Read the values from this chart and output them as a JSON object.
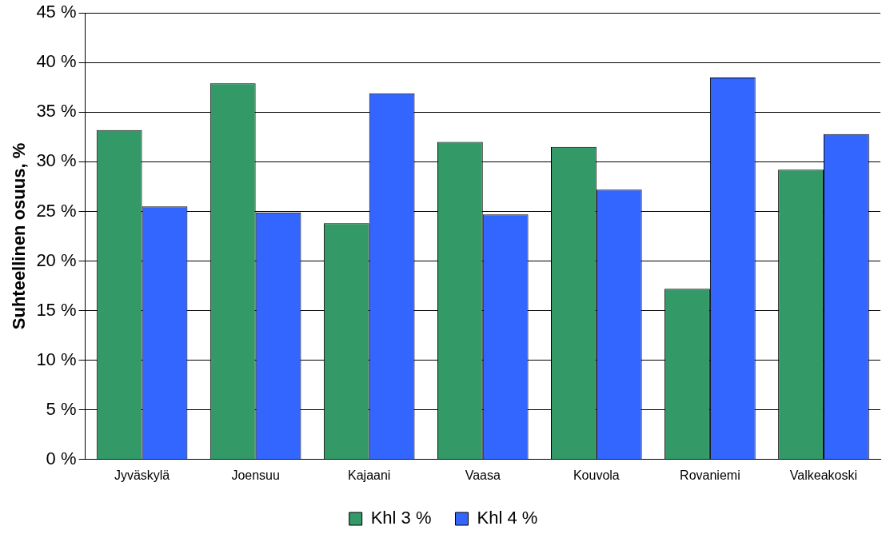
{
  "chart_data": {
    "type": "bar",
    "ylabel": "Suhteellinen osuus, %",
    "categories": [
      "Jyväskylä",
      "Joensuu",
      "Kajaani",
      "Vaasa",
      "Kouvola",
      "Rovaniemi",
      "Valkeakoski"
    ],
    "series": [
      {
        "name": "Khl 3 %",
        "color": "#339966",
        "values": [
          33.2,
          37.9,
          23.8,
          32.0,
          31.5,
          17.2,
          29.2
        ]
      },
      {
        "name": "Khl 4 %",
        "color": "#3366ff",
        "values": [
          25.5,
          24.9,
          36.9,
          24.7,
          27.2,
          38.5,
          32.8
        ]
      }
    ],
    "ylim": [
      0,
      45
    ],
    "yticks": [
      {
        "value": 0,
        "label": "0 %"
      },
      {
        "value": 5,
        "label": "5 %"
      },
      {
        "value": 10,
        "label": "10 %"
      },
      {
        "value": 15,
        "label": "15 %"
      },
      {
        "value": 20,
        "label": "20 %"
      },
      {
        "value": 25,
        "label": "25 %"
      },
      {
        "value": 30,
        "label": "30 %"
      },
      {
        "value": 35,
        "label": "35 %"
      },
      {
        "value": 40,
        "label": "40 %"
      },
      {
        "value": 45,
        "label": "45 %"
      }
    ],
    "grid": "y",
    "legend": "bottom"
  }
}
